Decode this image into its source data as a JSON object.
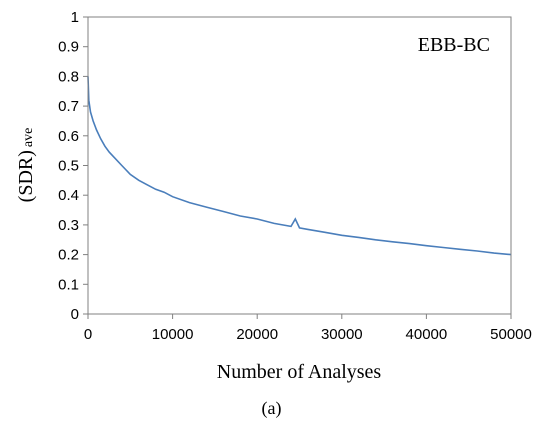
{
  "chart_data": {
    "type": "line",
    "annotation": "EBB-BC",
    "xlabel": "Number of Analyses",
    "ylabel_main": "(SDR)",
    "ylabel_sub": "ave",
    "xlim": [
      0,
      50000
    ],
    "ylim": [
      0,
      1
    ],
    "xticks": [
      "0",
      "10000",
      "20000",
      "30000",
      "40000",
      "50000"
    ],
    "yticks": [
      "0",
      "0.1",
      "0.2",
      "0.3",
      "0.4",
      "0.5",
      "0.6",
      "0.7",
      "0.8",
      "0.9",
      "1"
    ],
    "grid": false,
    "series": [
      {
        "color": "#4a7ebb",
        "x": [
          0,
          100,
          300,
          600,
          1000,
          1500,
          2000,
          2500,
          3000,
          4000,
          5000,
          6000,
          7000,
          8000,
          9000,
          10000,
          12000,
          14000,
          16000,
          18000,
          20000,
          22000,
          24000,
          24500,
          25000,
          26000,
          28000,
          30000,
          32000,
          34000,
          36000,
          38000,
          40000,
          42000,
          44000,
          46000,
          48000,
          50000
        ],
        "y": [
          0.8,
          0.72,
          0.68,
          0.65,
          0.62,
          0.59,
          0.565,
          0.545,
          0.53,
          0.5,
          0.47,
          0.45,
          0.435,
          0.42,
          0.41,
          0.395,
          0.375,
          0.36,
          0.345,
          0.33,
          0.32,
          0.305,
          0.295,
          0.32,
          0.29,
          0.285,
          0.275,
          0.265,
          0.258,
          0.25,
          0.243,
          0.237,
          0.23,
          0.224,
          0.218,
          0.212,
          0.205,
          0.2
        ]
      }
    ]
  },
  "caption": "(a)"
}
